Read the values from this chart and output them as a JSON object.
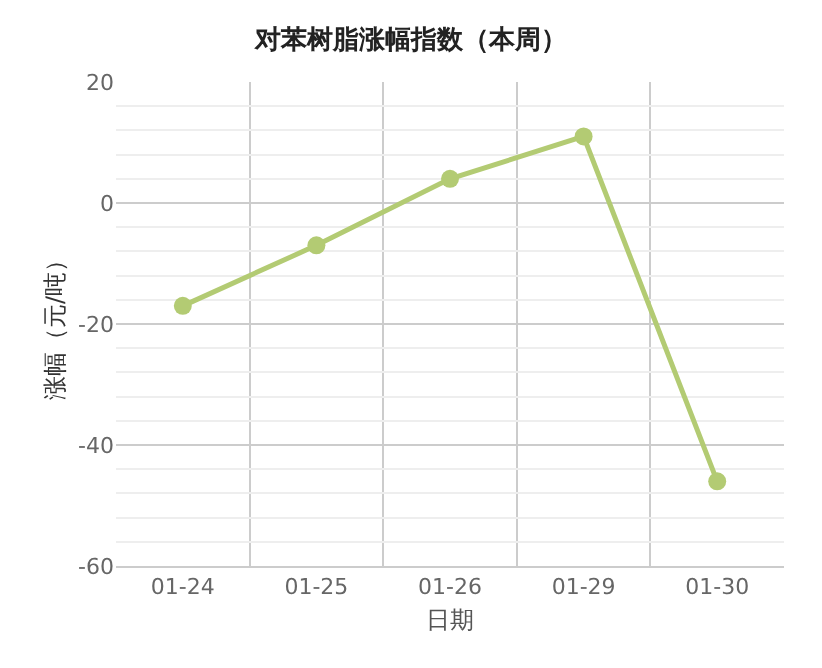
{
  "chart_data": {
    "type": "line",
    "title": "对苯树脂涨幅指数（本周）",
    "xlabel": "日期",
    "ylabel": "涨幅（元/吨）",
    "categories": [
      "01-24",
      "01-25",
      "01-26",
      "01-29",
      "01-30"
    ],
    "series": [
      {
        "color": "#b3cb73",
        "values": [
          -17,
          -7,
          4,
          11,
          -46
        ]
      }
    ],
    "ylim": [
      -60,
      20
    ],
    "yticks": [
      -60,
      -40,
      -20,
      0,
      20
    ],
    "grid": true,
    "marker": "circle",
    "line_style": "solid"
  }
}
